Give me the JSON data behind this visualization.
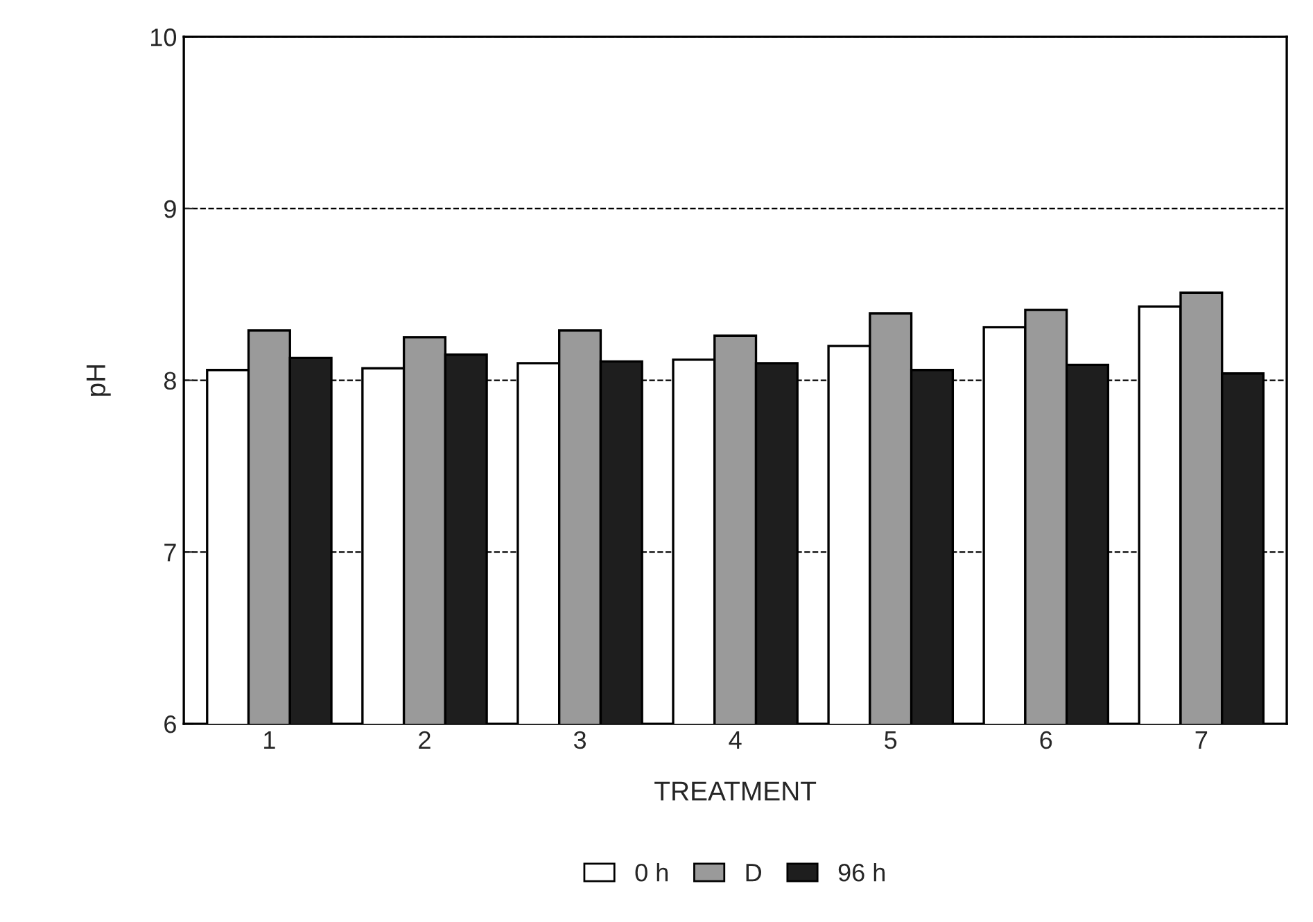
{
  "chart_data": {
    "type": "bar",
    "xlabel": "TREATMENT",
    "ylabel": "pH",
    "categories": [
      "1",
      "2",
      "3",
      "4",
      "5",
      "6",
      "7"
    ],
    "series": [
      {
        "name": "0 h",
        "color": "#ffffff",
        "values": [
          8.06,
          8.07,
          8.1,
          8.12,
          8.2,
          8.31,
          8.43
        ]
      },
      {
        "name": "D",
        "color": "#9a9a9a",
        "values": [
          8.29,
          8.25,
          8.29,
          8.26,
          8.39,
          8.41,
          8.51
        ]
      },
      {
        "name": "96 h",
        "color": "#1e1e1e",
        "values": [
          8.13,
          8.15,
          8.11,
          8.1,
          8.06,
          8.09,
          8.04
        ]
      }
    ],
    "ylim": [
      6,
      10
    ],
    "yticks": [
      6,
      7,
      8,
      9,
      10
    ],
    "grid": "y",
    "line_style": "dashed",
    "legend": "bottom"
  }
}
